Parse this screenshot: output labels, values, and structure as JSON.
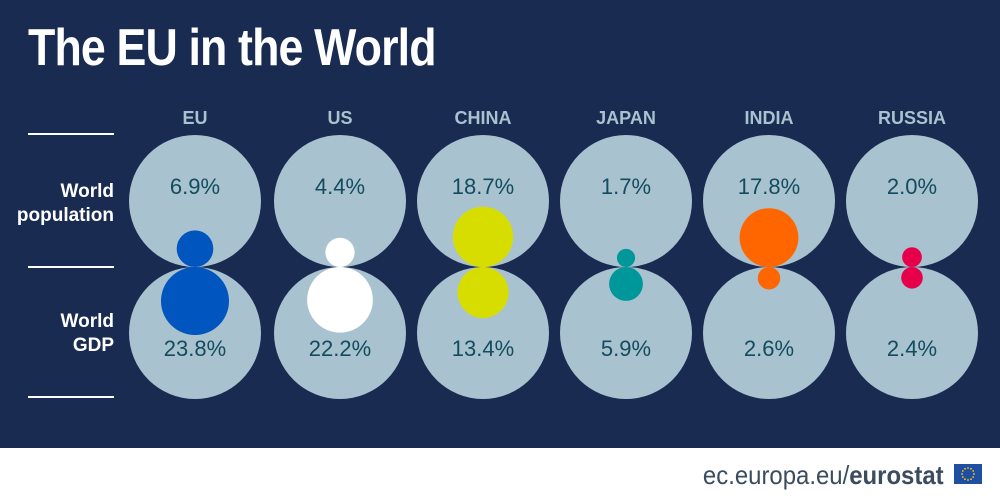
{
  "title": "The EU in the World",
  "footer": {
    "domain": "ec.europa.eu/",
    "brand": "eurostat",
    "flag_icon": "eu-flag-icon"
  },
  "chart_data": {
    "type": "bubble",
    "categories": [
      "EU",
      "US",
      "CHINA",
      "JAPAN",
      "INDIA",
      "RUSSIA"
    ],
    "rows": [
      {
        "label": "World population",
        "label_lines": [
          "World",
          "population"
        ],
        "values": [
          6.9,
          4.4,
          18.7,
          1.7,
          17.8,
          2.0
        ],
        "value_labels": [
          "6.9%",
          "4.4%",
          "18.7%",
          "1.7%",
          "17.8%",
          "2.0%"
        ]
      },
      {
        "label": "World GDP",
        "label_lines": [
          "World",
          "GDP"
        ],
        "values": [
          23.8,
          22.2,
          13.4,
          5.9,
          2.6,
          2.4
        ],
        "value_labels": [
          "23.8%",
          "22.2%",
          "13.4%",
          "5.9%",
          "2.6%",
          "2.4%"
        ]
      }
    ],
    "colors": [
      "#0055bf",
      "#ffffff",
      "#d8dd00",
      "#00979a",
      "#ff6600",
      "#e6004c"
    ],
    "background_circle_color": "#a9c2cf",
    "value_text_color": "#134c5e",
    "header_text_color": "#a9c2cf"
  }
}
